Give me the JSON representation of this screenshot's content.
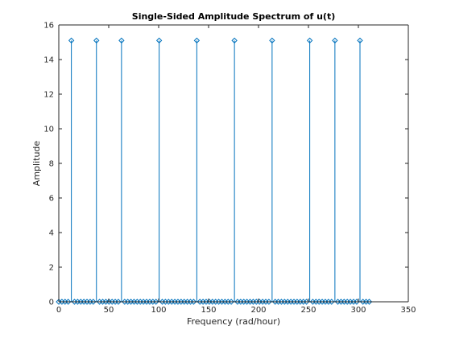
{
  "chart_data": {
    "type": "stem",
    "title": "Single-Sided Amplitude Spectrum of u(t)",
    "xlabel": "Frequency (rad/hour)",
    "ylabel": "Amplitude",
    "xlim": [
      0,
      350
    ],
    "ylim": [
      0,
      16
    ],
    "xticks": [
      "0",
      "50",
      "100",
      "150",
      "200",
      "250",
      "300",
      "350"
    ],
    "yticks": [
      "0",
      "2",
      "4",
      "6",
      "8",
      "10",
      "12",
      "14",
      "16"
    ],
    "grid": false,
    "colors": {
      "stem": "#0072BD",
      "axes": "#262626"
    },
    "frequency_step": 3.14,
    "point_count": 100,
    "peaks": [
      {
        "x": 12.6,
        "y": 15.1
      },
      {
        "x": 37.7,
        "y": 15.1
      },
      {
        "x": 62.8,
        "y": 15.1
      },
      {
        "x": 100.5,
        "y": 15.1
      },
      {
        "x": 138.2,
        "y": 15.1
      },
      {
        "x": 175.9,
        "y": 15.1
      },
      {
        "x": 213.6,
        "y": 15.1
      },
      {
        "x": 251.3,
        "y": 15.1
      },
      {
        "x": 276.5,
        "y": 15.1
      },
      {
        "x": 301.6,
        "y": 15.1
      }
    ],
    "baseline_value": 0
  }
}
